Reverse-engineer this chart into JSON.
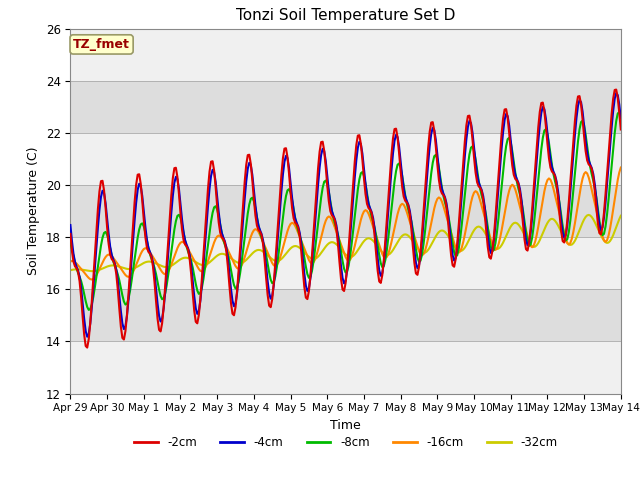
{
  "title": "Tonzi Soil Temperature Set D",
  "xlabel": "Time",
  "ylabel": "Soil Temperature (C)",
  "ylim": [
    12,
    26
  ],
  "annotation_text": "TZ_fmet",
  "annotation_bg": "#ffffcc",
  "annotation_fg": "#990000",
  "bg_color": "#dddddd",
  "white_band_color": "#f0f0f0",
  "series": {
    "-2cm": {
      "color": "#dd0000",
      "lw": 1.5
    },
    "-4cm": {
      "color": "#0000cc",
      "lw": 1.5
    },
    "-8cm": {
      "color": "#00bb00",
      "lw": 1.5
    },
    "-16cm": {
      "color": "#ff8800",
      "lw": 1.5
    },
    "-32cm": {
      "color": "#cccc00",
      "lw": 1.5
    }
  },
  "tick_labels": [
    "Apr 29",
    "Apr 30",
    "May 1",
    "May 2",
    "May 3",
    "May 4",
    "May 5",
    "May 6",
    "May 7",
    "May 8",
    "May 9",
    "May 10",
    "May 11",
    "May 12",
    "May 13",
    "May 14"
  ],
  "tick_positions": [
    0,
    1,
    2,
    3,
    4,
    5,
    6,
    7,
    8,
    9,
    10,
    11,
    12,
    13,
    14,
    15
  ],
  "yticks": [
    12,
    14,
    16,
    18,
    20,
    22,
    24,
    26
  ]
}
